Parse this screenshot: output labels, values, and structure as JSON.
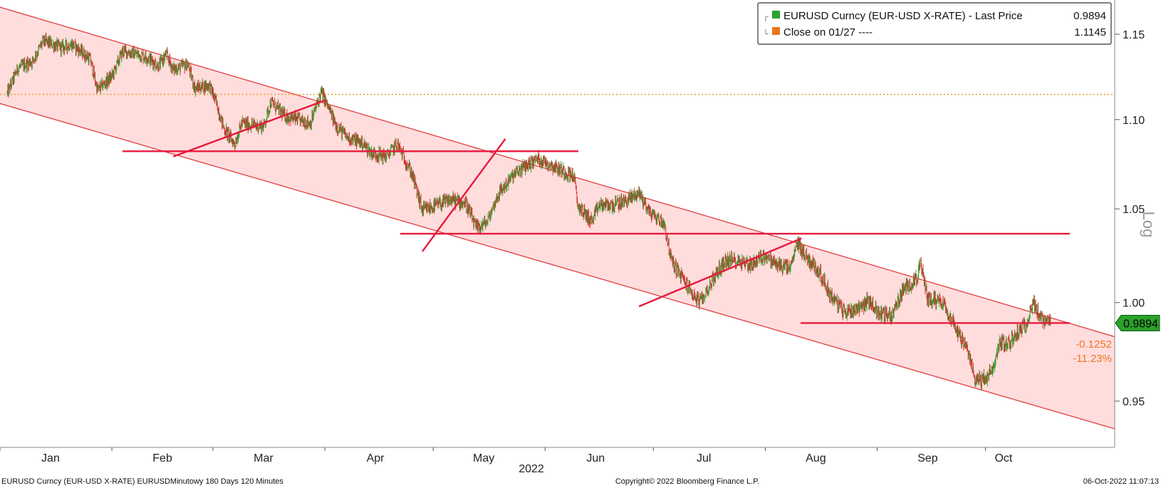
{
  "chart_data": {
    "type": "candlestick",
    "scale": "log",
    "ylabel": "Log",
    "y_ticks": [
      "0.95",
      "1.00",
      "1.05",
      "1.10",
      "1.15"
    ],
    "x_ticks": [
      "Jan",
      "Feb",
      "Mar",
      "Apr",
      "May",
      "Jun",
      "Jul",
      "Aug",
      "Sep",
      "Oct"
    ],
    "x_year_label": "2022",
    "legend": {
      "position": "top-right",
      "items": [
        {
          "label": "EURUSD Curncy (EUR-USD X-RATE) - Last Price",
          "value": "0.9894",
          "color": "#2ca02c"
        },
        {
          "label": "Close on 01/27 ----",
          "value": "1.1145",
          "color": "#e87722"
        }
      ]
    },
    "last_price_label": "0.9894",
    "change_abs": "-0.1252",
    "change_pct": "-11.23%",
    "reference_level": 1.1145,
    "last_price": 0.9894,
    "horizontal_levels": [
      1.082,
      1.0365,
      0.9894
    ],
    "trendlines": [
      {
        "from": [
          "2022-02-18",
          1.079
        ],
        "to": [
          "2022-04-01",
          1.111
        ]
      },
      {
        "from": [
          "2022-04-28",
          1.027
        ],
        "to": [
          "2022-05-21",
          1.089
        ]
      },
      {
        "from": [
          "2022-06-27",
          0.998
        ],
        "to": [
          "2022-08-11",
          1.034
        ]
      }
    ],
    "channel": {
      "upper": {
        "from": [
          "2022-01-03",
          1.165
        ],
        "to": [
          "2022-10-22",
          0.9905
        ]
      },
      "lower": {
        "from": [
          "2022-01-03",
          1.108
        ],
        "to": [
          "2022-10-22",
          0.944
        ]
      }
    },
    "path_points": [
      [
        "2022-01-03",
        1.115
      ],
      [
        "2022-01-06",
        1.13
      ],
      [
        "2022-01-10",
        1.134
      ],
      [
        "2022-01-13",
        1.146
      ],
      [
        "2022-01-18",
        1.142
      ],
      [
        "2022-01-21",
        1.144
      ],
      [
        "2022-01-26",
        1.135
      ],
      [
        "2022-01-28",
        1.117
      ],
      [
        "2022-02-01",
        1.125
      ],
      [
        "2022-02-04",
        1.14
      ],
      [
        "2022-02-08",
        1.138
      ],
      [
        "2022-02-11",
        1.136
      ],
      [
        "2022-02-14",
        1.131
      ],
      [
        "2022-02-16",
        1.138
      ],
      [
        "2022-02-18",
        1.129
      ],
      [
        "2022-02-22",
        1.132
      ],
      [
        "2022-02-24",
        1.118
      ],
      [
        "2022-02-28",
        1.12
      ],
      [
        "2022-03-02",
        1.109
      ],
      [
        "2022-03-04",
        1.095
      ],
      [
        "2022-03-07",
        1.086
      ],
      [
        "2022-03-09",
        1.098
      ],
      [
        "2022-03-11",
        1.097
      ],
      [
        "2022-03-15",
        1.096
      ],
      [
        "2022-03-17",
        1.11
      ],
      [
        "2022-03-21",
        1.102
      ],
      [
        "2022-03-24",
        1.1
      ],
      [
        "2022-03-28",
        1.098
      ],
      [
        "2022-03-31",
        1.116
      ],
      [
        "2022-04-04",
        1.097
      ],
      [
        "2022-04-07",
        1.09
      ],
      [
        "2022-04-11",
        1.087
      ],
      [
        "2022-04-14",
        1.081
      ],
      [
        "2022-04-18",
        1.079
      ],
      [
        "2022-04-21",
        1.086
      ],
      [
        "2022-04-25",
        1.07
      ],
      [
        "2022-04-28",
        1.049
      ],
      [
        "2022-05-02",
        1.052
      ],
      [
        "2022-05-06",
        1.055
      ],
      [
        "2022-05-10",
        1.053
      ],
      [
        "2022-05-13",
        1.039
      ],
      [
        "2022-05-16",
        1.043
      ],
      [
        "2022-05-19",
        1.058
      ],
      [
        "2022-05-23",
        1.068
      ],
      [
        "2022-05-26",
        1.073
      ],
      [
        "2022-05-30",
        1.078
      ],
      [
        "2022-06-02",
        1.075
      ],
      [
        "2022-06-06",
        1.071
      ],
      [
        "2022-06-09",
        1.068
      ],
      [
        "2022-06-10",
        1.052
      ],
      [
        "2022-06-14",
        1.043
      ],
      [
        "2022-06-16",
        1.052
      ],
      [
        "2022-06-20",
        1.052
      ],
      [
        "2022-06-23",
        1.054
      ],
      [
        "2022-06-27",
        1.059
      ],
      [
        "2022-06-30",
        1.048
      ],
      [
        "2022-07-04",
        1.042
      ],
      [
        "2022-07-06",
        1.022
      ],
      [
        "2022-07-08",
        1.016
      ],
      [
        "2022-07-12",
        1.004
      ],
      [
        "2022-07-14",
        1.0
      ],
      [
        "2022-07-18",
        1.014
      ],
      [
        "2022-07-21",
        1.022
      ],
      [
        "2022-07-25",
        1.022
      ],
      [
        "2022-07-28",
        1.02
      ],
      [
        "2022-08-01",
        1.025
      ],
      [
        "2022-08-04",
        1.02
      ],
      [
        "2022-08-08",
        1.018
      ],
      [
        "2022-08-10",
        1.032
      ],
      [
        "2022-08-12",
        1.025
      ],
      [
        "2022-08-16",
        1.016
      ],
      [
        "2022-08-19",
        1.004
      ],
      [
        "2022-08-23",
        0.995
      ],
      [
        "2022-08-26",
        0.997
      ],
      [
        "2022-08-30",
        1.001
      ],
      [
        "2022-09-01",
        0.995
      ],
      [
        "2022-09-05",
        0.993
      ],
      [
        "2022-09-08",
        1.006
      ],
      [
        "2022-09-12",
        1.013
      ],
      [
        "2022-09-13",
        1.02
      ],
      [
        "2022-09-15",
        1.002
      ],
      [
        "2022-09-19",
        1.001
      ],
      [
        "2022-09-22",
        0.99
      ],
      [
        "2022-09-26",
        0.975
      ],
      [
        "2022-09-28",
        0.962
      ],
      [
        "2022-09-30",
        0.96
      ],
      [
        "2022-10-03",
        0.965
      ],
      [
        "2022-10-05",
        0.98
      ],
      [
        "2022-10-07",
        0.978
      ],
      [
        "2022-10-10",
        0.985
      ],
      [
        "2022-10-12",
        0.988
      ],
      [
        "2022-10-14",
        1.0
      ],
      [
        "2022-10-17",
        0.99
      ],
      [
        "2022-10-19",
        0.9894
      ]
    ]
  },
  "footer": {
    "left": "EURUSD Curncy (EUR-USD X-RATE) EURUSDMinutowy 180 Days 120 Minutes",
    "center": "Copyright© 2022 Bloomberg Finance L.P.",
    "right": "06-Oct-2022 11:07:13"
  }
}
